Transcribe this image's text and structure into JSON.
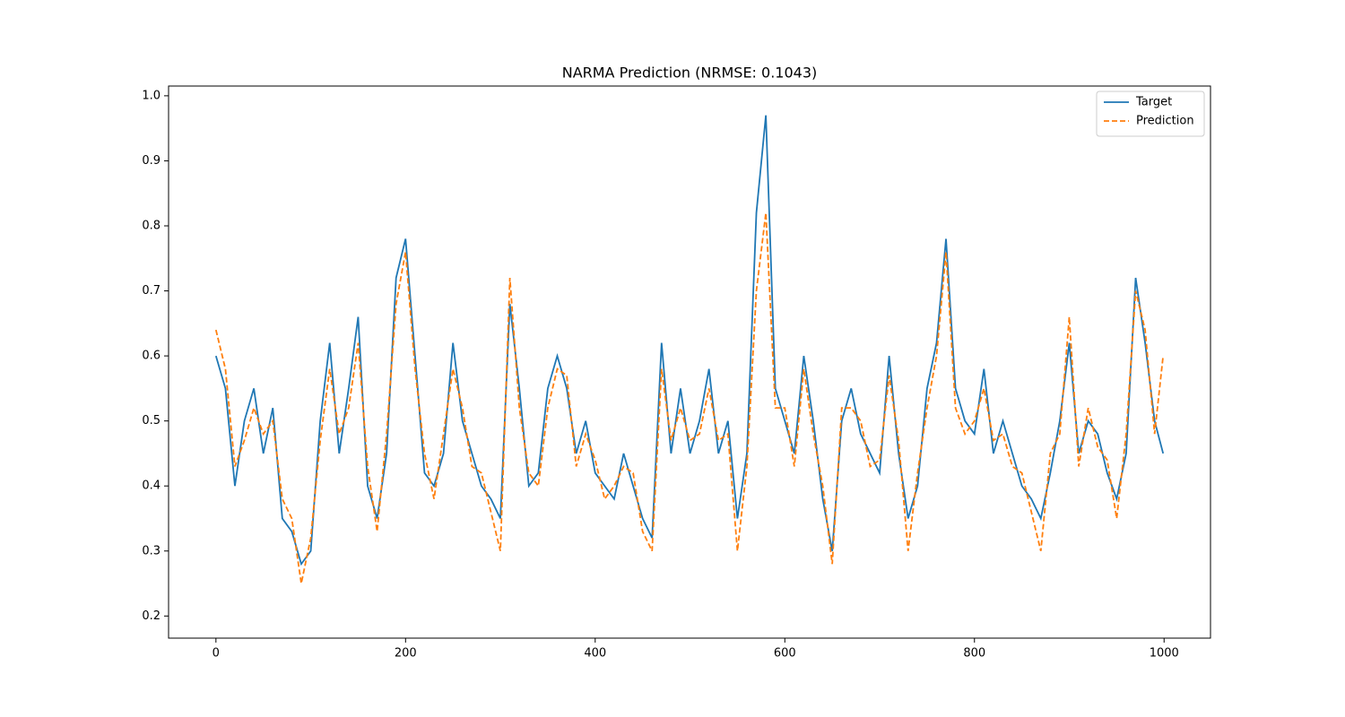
{
  "chart_data": {
    "type": "line",
    "title": "NARMA Prediction (NRMSE: 0.1043)",
    "x": [
      0,
      10,
      20,
      30,
      40,
      50,
      60,
      70,
      80,
      90,
      100,
      110,
      120,
      130,
      140,
      150,
      160,
      170,
      180,
      190,
      200,
      210,
      220,
      230,
      240,
      250,
      260,
      270,
      280,
      290,
      300,
      310,
      320,
      330,
      340,
      350,
      360,
      370,
      380,
      390,
      400,
      410,
      420,
      430,
      440,
      450,
      460,
      470,
      480,
      490,
      500,
      510,
      520,
      530,
      540,
      550,
      560,
      570,
      580,
      590,
      600,
      610,
      620,
      630,
      640,
      650,
      660,
      670,
      680,
      690,
      700,
      710,
      720,
      730,
      740,
      750,
      760,
      770,
      780,
      790,
      800,
      810,
      820,
      830,
      840,
      850,
      860,
      870,
      880,
      890,
      900,
      910,
      920,
      930,
      940,
      950,
      960,
      970,
      980,
      990,
      999
    ],
    "series": [
      {
        "name": "Target",
        "color": "#1f77b4",
        "dash": false,
        "values": [
          0.6,
          0.55,
          0.4,
          0.5,
          0.55,
          0.45,
          0.52,
          0.35,
          0.33,
          0.28,
          0.3,
          0.5,
          0.62,
          0.45,
          0.55,
          0.66,
          0.4,
          0.35,
          0.45,
          0.72,
          0.78,
          0.6,
          0.42,
          0.4,
          0.45,
          0.62,
          0.5,
          0.45,
          0.4,
          0.38,
          0.35,
          0.68,
          0.55,
          0.4,
          0.42,
          0.55,
          0.6,
          0.55,
          0.45,
          0.5,
          0.42,
          0.4,
          0.38,
          0.45,
          0.4,
          0.35,
          0.32,
          0.62,
          0.45,
          0.55,
          0.45,
          0.5,
          0.58,
          0.45,
          0.5,
          0.35,
          0.45,
          0.82,
          0.97,
          0.55,
          0.5,
          0.45,
          0.6,
          0.5,
          0.38,
          0.3,
          0.5,
          0.55,
          0.48,
          0.45,
          0.42,
          0.6,
          0.45,
          0.35,
          0.4,
          0.55,
          0.62,
          0.78,
          0.55,
          0.5,
          0.48,
          0.58,
          0.45,
          0.5,
          0.45,
          0.4,
          0.38,
          0.35,
          0.42,
          0.5,
          0.62,
          0.45,
          0.5,
          0.48,
          0.42,
          0.38,
          0.45,
          0.72,
          0.62,
          0.5,
          0.45
        ]
      },
      {
        "name": "Prediction",
        "color": "#ff7f0e",
        "dash": true,
        "values": [
          0.64,
          0.58,
          0.43,
          0.47,
          0.52,
          0.48,
          0.5,
          0.38,
          0.35,
          0.25,
          0.32,
          0.47,
          0.58,
          0.48,
          0.52,
          0.62,
          0.43,
          0.33,
          0.48,
          0.68,
          0.76,
          0.58,
          0.45,
          0.38,
          0.48,
          0.58,
          0.52,
          0.43,
          0.42,
          0.36,
          0.3,
          0.72,
          0.52,
          0.42,
          0.4,
          0.52,
          0.58,
          0.57,
          0.43,
          0.48,
          0.44,
          0.38,
          0.4,
          0.43,
          0.42,
          0.33,
          0.3,
          0.58,
          0.47,
          0.52,
          0.47,
          0.48,
          0.55,
          0.47,
          0.48,
          0.3,
          0.43,
          0.7,
          0.82,
          0.52,
          0.52,
          0.43,
          0.58,
          0.48,
          0.4,
          0.28,
          0.52,
          0.52,
          0.5,
          0.43,
          0.44,
          0.57,
          0.47,
          0.3,
          0.42,
          0.52,
          0.6,
          0.76,
          0.52,
          0.48,
          0.5,
          0.55,
          0.47,
          0.48,
          0.43,
          0.42,
          0.36,
          0.3,
          0.45,
          0.48,
          0.66,
          0.43,
          0.52,
          0.46,
          0.44,
          0.35,
          0.48,
          0.7,
          0.64,
          0.48,
          0.6
        ]
      }
    ],
    "xlim": [
      -49.95,
      1048.95
    ],
    "ylim": [
      0.166,
      1.015
    ],
    "xticks": [
      0,
      200,
      400,
      600,
      800,
      1000
    ],
    "yticks": [
      {
        "value": 0.2,
        "label": "0.2"
      },
      {
        "value": 0.3,
        "label": "0.3"
      },
      {
        "value": 0.4,
        "label": "0.4"
      },
      {
        "value": 0.5,
        "label": "0.5"
      },
      {
        "value": 0.6,
        "label": "0.6"
      },
      {
        "value": 0.7,
        "label": "0.7"
      },
      {
        "value": 0.8,
        "label": "0.8"
      },
      {
        "value": 0.9,
        "label": "0.9"
      },
      {
        "value": 1.0,
        "label": "1.0"
      }
    ],
    "legend": "upper right",
    "grid": false
  }
}
